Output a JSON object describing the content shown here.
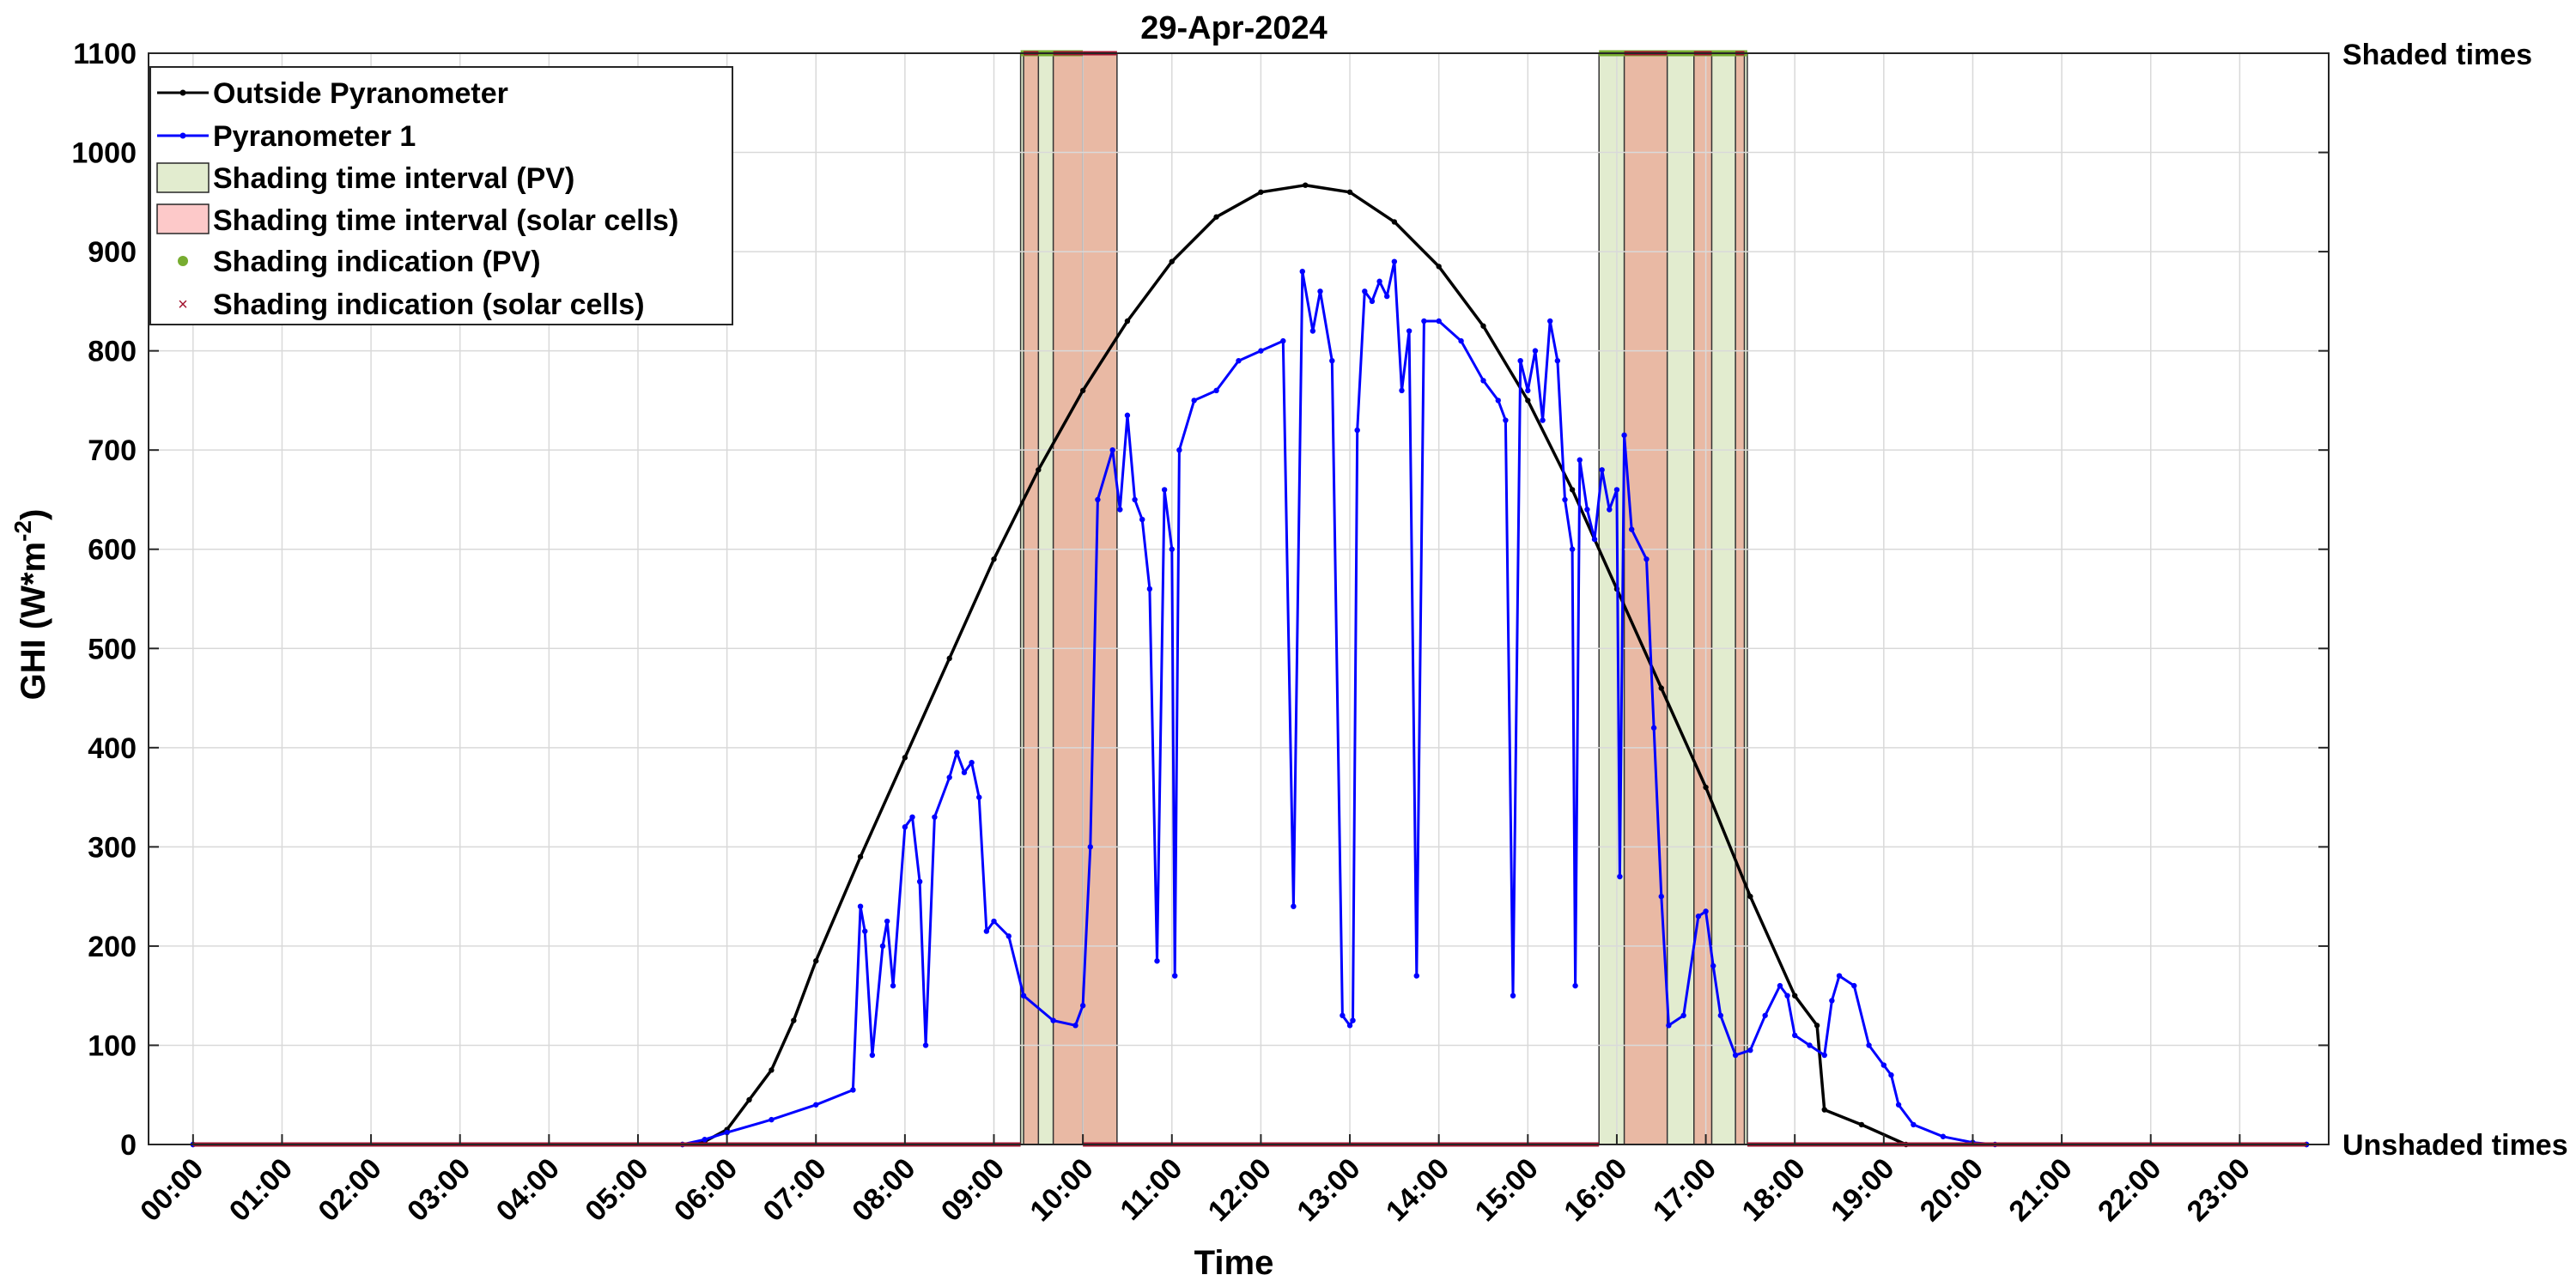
{
  "chart_data": {
    "type": "line",
    "title": "29-Apr-2024",
    "xlabel": "Time",
    "ylabel": "GHI (W*m",
    "ylabel_exponent": "-2",
    "ylabel_suffix": ")",
    "ylim": [
      0,
      1100
    ],
    "y_ticks": [
      0,
      100,
      200,
      300,
      400,
      500,
      600,
      700,
      800,
      900,
      1000,
      1100
    ],
    "xlim_hours": [
      -0.5,
      24
    ],
    "x_ticks": [
      "00:00",
      "01:00",
      "02:00",
      "03:00",
      "04:00",
      "05:00",
      "06:00",
      "07:00",
      "08:00",
      "09:00",
      "10:00",
      "11:00",
      "12:00",
      "13:00",
      "14:00",
      "15:00",
      "16:00",
      "17:00",
      "18:00",
      "19:00",
      "20:00",
      "21:00",
      "22:00",
      "23:00"
    ],
    "grid": true,
    "right_axis_labels": {
      "top": "Shaded times",
      "bottom": "Unshaded times"
    },
    "legend_position": "top-left",
    "series": [
      {
        "name": "Outside Pyranometer",
        "color": "#000000",
        "points": [
          [
            "00:00",
            0
          ],
          [
            "05:30",
            0
          ],
          [
            "05:45",
            3
          ],
          [
            "06:00",
            15
          ],
          [
            "06:15",
            45
          ],
          [
            "06:30",
            75
          ],
          [
            "06:45",
            125
          ],
          [
            "07:00",
            185
          ],
          [
            "07:30",
            290
          ],
          [
            "08:00",
            390
          ],
          [
            "08:30",
            490
          ],
          [
            "09:00",
            590
          ],
          [
            "09:30",
            680
          ],
          [
            "10:00",
            760
          ],
          [
            "10:30",
            830
          ],
          [
            "11:00",
            890
          ],
          [
            "11:30",
            935
          ],
          [
            "12:00",
            960
          ],
          [
            "12:30",
            967
          ],
          [
            "13:00",
            960
          ],
          [
            "13:30",
            930
          ],
          [
            "14:00",
            885
          ],
          [
            "14:30",
            825
          ],
          [
            "15:00",
            750
          ],
          [
            "15:30",
            660
          ],
          [
            "16:00",
            560
          ],
          [
            "16:30",
            460
          ],
          [
            "17:00",
            360
          ],
          [
            "17:30",
            250
          ],
          [
            "18:00",
            150
          ],
          [
            "18:15",
            120
          ],
          [
            "18:20",
            35
          ],
          [
            "18:45",
            20
          ],
          [
            "19:15",
            0
          ],
          [
            "23:45",
            0
          ]
        ]
      },
      {
        "name": "Pyranometer 1",
        "color": "#0000ff",
        "points": [
          [
            "00:00",
            0
          ],
          [
            "05:30",
            0
          ],
          [
            "05:45",
            5
          ],
          [
            "06:00",
            12
          ],
          [
            "06:30",
            25
          ],
          [
            "07:00",
            40
          ],
          [
            "07:25",
            55
          ],
          [
            "07:30",
            240
          ],
          [
            "07:33",
            215
          ],
          [
            "07:38",
            90
          ],
          [
            "07:45",
            200
          ],
          [
            "07:48",
            225
          ],
          [
            "07:52",
            160
          ],
          [
            "08:00",
            320
          ],
          [
            "08:05",
            330
          ],
          [
            "08:10",
            265
          ],
          [
            "08:14",
            100
          ],
          [
            "08:20",
            330
          ],
          [
            "08:30",
            370
          ],
          [
            "08:35",
            395
          ],
          [
            "08:40",
            375
          ],
          [
            "08:45",
            385
          ],
          [
            "08:50",
            350
          ],
          [
            "08:55",
            215
          ],
          [
            "09:00",
            225
          ],
          [
            "09:10",
            210
          ],
          [
            "09:20",
            150
          ],
          [
            "09:40",
            125
          ],
          [
            "09:55",
            120
          ],
          [
            "10:00",
            140
          ],
          [
            "10:05",
            300
          ],
          [
            "10:10",
            650
          ],
          [
            "10:20",
            700
          ],
          [
            "10:25",
            640
          ],
          [
            "10:30",
            735
          ],
          [
            "10:35",
            650
          ],
          [
            "10:40",
            630
          ],
          [
            "10:45",
            560
          ],
          [
            "10:50",
            185
          ],
          [
            "10:55",
            660
          ],
          [
            "11:00",
            600
          ],
          [
            "11:02",
            170
          ],
          [
            "11:05",
            700
          ],
          [
            "11:15",
            750
          ],
          [
            "11:30",
            760
          ],
          [
            "11:45",
            790
          ],
          [
            "12:00",
            800
          ],
          [
            "12:15",
            810
          ],
          [
            "12:22",
            240
          ],
          [
            "12:28",
            880
          ],
          [
            "12:35",
            820
          ],
          [
            "12:40",
            860
          ],
          [
            "12:48",
            790
          ],
          [
            "12:55",
            130
          ],
          [
            "13:00",
            120
          ],
          [
            "13:02",
            125
          ],
          [
            "13:05",
            720
          ],
          [
            "13:10",
            860
          ],
          [
            "13:15",
            850
          ],
          [
            "13:20",
            870
          ],
          [
            "13:25",
            855
          ],
          [
            "13:30",
            890
          ],
          [
            "13:35",
            760
          ],
          [
            "13:40",
            820
          ],
          [
            "13:45",
            170
          ],
          [
            "13:50",
            830
          ],
          [
            "14:00",
            830
          ],
          [
            "14:15",
            810
          ],
          [
            "14:30",
            770
          ],
          [
            "14:40",
            750
          ],
          [
            "14:45",
            730
          ],
          [
            "14:50",
            150
          ],
          [
            "14:55",
            790
          ],
          [
            "15:00",
            760
          ],
          [
            "15:05",
            800
          ],
          [
            "15:10",
            730
          ],
          [
            "15:15",
            830
          ],
          [
            "15:20",
            790
          ],
          [
            "15:25",
            650
          ],
          [
            "15:30",
            600
          ],
          [
            "15:32",
            160
          ],
          [
            "15:35",
            690
          ],
          [
            "15:40",
            640
          ],
          [
            "15:45",
            610
          ],
          [
            "15:50",
            680
          ],
          [
            "15:55",
            640
          ],
          [
            "16:00",
            660
          ],
          [
            "16:02",
            270
          ],
          [
            "16:05",
            715
          ],
          [
            "16:10",
            620
          ],
          [
            "16:20",
            590
          ],
          [
            "16:25",
            420
          ],
          [
            "16:30",
            250
          ],
          [
            "16:35",
            120
          ],
          [
            "16:45",
            130
          ],
          [
            "16:55",
            230
          ],
          [
            "17:00",
            235
          ],
          [
            "17:05",
            180
          ],
          [
            "17:10",
            130
          ],
          [
            "17:20",
            90
          ],
          [
            "17:30",
            95
          ],
          [
            "17:40",
            130
          ],
          [
            "17:50",
            160
          ],
          [
            "17:55",
            150
          ],
          [
            "18:00",
            110
          ],
          [
            "18:10",
            100
          ],
          [
            "18:20",
            90
          ],
          [
            "18:25",
            145
          ],
          [
            "18:30",
            170
          ],
          [
            "18:40",
            160
          ],
          [
            "18:50",
            100
          ],
          [
            "19:00",
            80
          ],
          [
            "19:05",
            70
          ],
          [
            "19:10",
            40
          ],
          [
            "19:20",
            20
          ],
          [
            "19:40",
            8
          ],
          [
            "20:00",
            2
          ],
          [
            "20:15",
            0
          ],
          [
            "23:45",
            0
          ]
        ]
      }
    ],
    "shading_pv": {
      "name": "Shading time interval (PV)",
      "fill": "#e2eccf",
      "intervals": [
        [
          "09:18",
          "10:00"
        ],
        [
          "15:48",
          "17:28"
        ]
      ]
    },
    "shading_cells": {
      "name": "Shading time interval (solar cells)",
      "fill": "#e9b9a4",
      "intervals": [
        [
          "09:20",
          "09:30"
        ],
        [
          "09:40",
          "10:00"
        ],
        [
          "10:00",
          "10:23"
        ],
        [
          "16:05",
          "16:34"
        ],
        [
          "16:52",
          "17:04"
        ],
        [
          "17:20",
          "17:26"
        ]
      ]
    },
    "indication_pv": {
      "name": "Shading indication (PV)",
      "color": "#77ac30"
    },
    "indication_cells": {
      "name": "Shading indication (solar cells)",
      "color": "#a2142f"
    }
  }
}
